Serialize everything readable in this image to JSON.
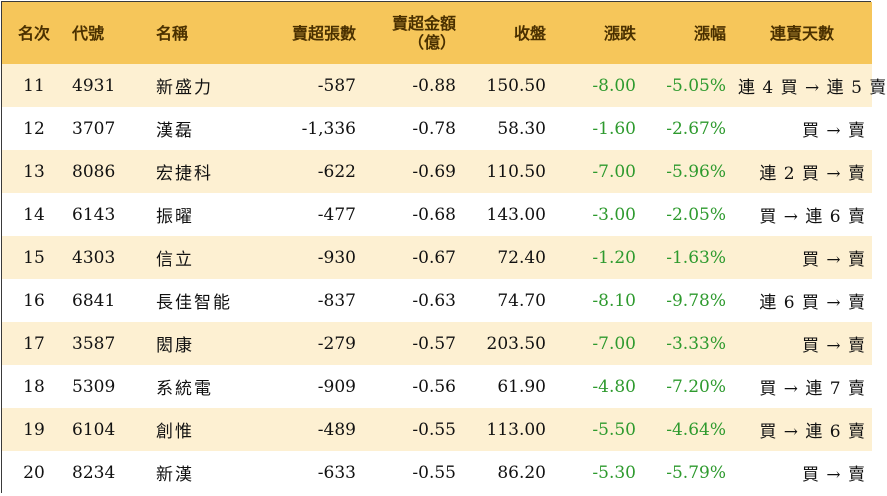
{
  "headers": {
    "rank": "名次",
    "code": "代號",
    "name": "名稱",
    "net_sell_lots": "賣超張數",
    "net_sell_amount": "賣超金額",
    "net_sell_amount_unit": "（億）",
    "close": "收盤",
    "change": "漲跌",
    "change_pct": "漲幅",
    "consecutive_days": "連賣天數"
  },
  "colors": {
    "header_bg": "#f6c65a",
    "stripe_bg": "#fdf0d2",
    "negative_text": "#2e9a2e"
  },
  "rows": [
    {
      "rank": "11",
      "code": "4931",
      "name": "新盛力",
      "lots": "-587",
      "amount": "-0.88",
      "close": "150.50",
      "change": "-8.00",
      "pct": "-5.05%",
      "days": "連 4 買 → 連 5 賣"
    },
    {
      "rank": "12",
      "code": "3707",
      "name": "漢磊",
      "lots": "-1,336",
      "amount": "-0.78",
      "close": "58.30",
      "change": "-1.60",
      "pct": "-2.67%",
      "days": "買 → 賣"
    },
    {
      "rank": "13",
      "code": "8086",
      "name": "宏捷科",
      "lots": "-622",
      "amount": "-0.69",
      "close": "110.50",
      "change": "-7.00",
      "pct": "-5.96%",
      "days": "連 2 買 → 賣"
    },
    {
      "rank": "14",
      "code": "6143",
      "name": "振曜",
      "lots": "-477",
      "amount": "-0.68",
      "close": "143.00",
      "change": "-3.00",
      "pct": "-2.05%",
      "days": "買 → 連 6 賣"
    },
    {
      "rank": "15",
      "code": "4303",
      "name": "信立",
      "lots": "-930",
      "amount": "-0.67",
      "close": "72.40",
      "change": "-1.20",
      "pct": "-1.63%",
      "days": "買 → 賣"
    },
    {
      "rank": "16",
      "code": "6841",
      "name": "長佳智能",
      "lots": "-837",
      "amount": "-0.63",
      "close": "74.70",
      "change": "-8.10",
      "pct": "-9.78%",
      "days": "連 6 買 → 賣"
    },
    {
      "rank": "17",
      "code": "3587",
      "name": "閎康",
      "lots": "-279",
      "amount": "-0.57",
      "close": "203.50",
      "change": "-7.00",
      "pct": "-3.33%",
      "days": "買 → 賣"
    },
    {
      "rank": "18",
      "code": "5309",
      "name": "系統電",
      "lots": "-909",
      "amount": "-0.56",
      "close": "61.90",
      "change": "-4.80",
      "pct": "-7.20%",
      "days": "買 → 連 7 賣"
    },
    {
      "rank": "19",
      "code": "6104",
      "name": "創惟",
      "lots": "-489",
      "amount": "-0.55",
      "close": "113.00",
      "change": "-5.50",
      "pct": "-4.64%",
      "days": "買 → 連 6 賣"
    },
    {
      "rank": "20",
      "code": "8234",
      "name": "新漢",
      "lots": "-633",
      "amount": "-0.55",
      "close": "86.20",
      "change": "-5.30",
      "pct": "-5.79%",
      "days": "買 → 賣"
    }
  ]
}
